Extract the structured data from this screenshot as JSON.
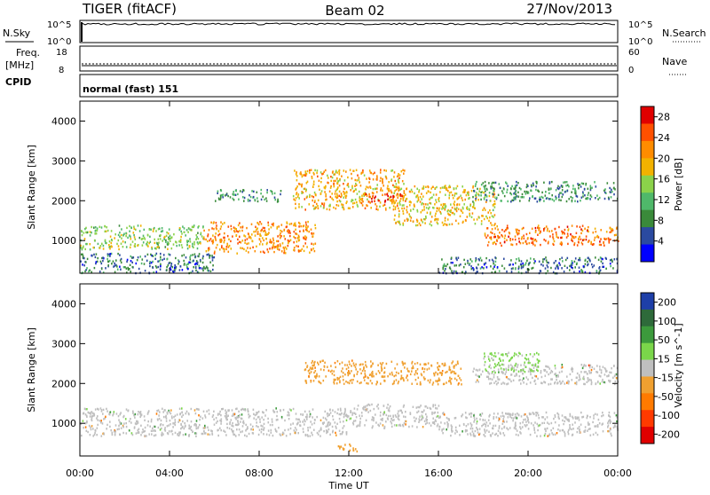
{
  "header": {
    "radar_title": "TIGER (fitACF)",
    "beam_title": "Beam 02",
    "date_title": "27/Nov/2013"
  },
  "status_panels": {
    "nsky_label": "N.Sky",
    "nsky_ticks": [
      "10^5",
      "10^0"
    ],
    "nsearch_label": "N.Search",
    "nsearch_ticks": [
      "10^5",
      "10^0"
    ],
    "freq_label": "Freq.",
    "freq_unit": "[MHz]",
    "freq_ticks": [
      "18",
      "8"
    ],
    "nave_label": "Nave",
    "nave_ticks": [
      "60",
      "0"
    ],
    "cpid_label": "CPID",
    "cpid_value": "normal (fast) 151"
  },
  "colors": {
    "power_scale": [
      "#0000ff",
      "#2b4aa0",
      "#3a8a3a",
      "#4fb86a",
      "#8bd24a",
      "#f2b200",
      "#ff8c00",
      "#ff5000",
      "#e00000"
    ],
    "velocity_scale": [
      "#1e3fa8",
      "#2e6a3a",
      "#3c9a3c",
      "#7ad64a",
      "#bfbfbf",
      "#f0a030",
      "#ff7a00",
      "#ff3a00",
      "#e00000"
    ]
  },
  "chart_data": [
    {
      "type": "heatmap",
      "title": "",
      "xlabel": "Time UT",
      "ylabel": "Slant Range [km]",
      "x_ticks": [
        "00:00",
        "04:00",
        "08:00",
        "12:00",
        "16:00",
        "20:00",
        "00:00"
      ],
      "y_ticks": [
        "1000",
        "2000",
        "3000",
        "4000"
      ],
      "ylim": [
        180,
        4500
      ],
      "colorbar_label": "Power [dB]",
      "colorbar_ticks": [
        "4",
        "8",
        "12",
        "16",
        "20",
        "24",
        "28"
      ],
      "colorbar_range": [
        0,
        30
      ],
      "scatter_regions": [
        {
          "t_start": 0.0,
          "t_end": 5.5,
          "r_start": 800,
          "r_end": 1400,
          "value": 14
        },
        {
          "t_start": 0.0,
          "t_end": 6.0,
          "r_start": 200,
          "r_end": 700,
          "value": 6
        },
        {
          "t_start": 5.5,
          "t_end": 10.5,
          "r_start": 700,
          "r_end": 1500,
          "value": 22
        },
        {
          "t_start": 6.0,
          "t_end": 9.0,
          "r_start": 2000,
          "r_end": 2300,
          "value": 8
        },
        {
          "t_start": 9.5,
          "t_end": 14.5,
          "r_start": 1800,
          "r_end": 2800,
          "value": 20
        },
        {
          "t_start": 12.5,
          "t_end": 14.5,
          "r_start": 2000,
          "r_end": 2200,
          "value": 28
        },
        {
          "t_start": 14.0,
          "t_end": 18.5,
          "r_start": 1400,
          "r_end": 2400,
          "value": 18
        },
        {
          "t_start": 18.0,
          "t_end": 24.0,
          "r_start": 900,
          "r_end": 1400,
          "value": 24
        },
        {
          "t_start": 17.5,
          "t_end": 24.0,
          "r_start": 2000,
          "r_end": 2500,
          "value": 8
        },
        {
          "t_start": 16.0,
          "t_end": 24.0,
          "r_start": 200,
          "r_end": 600,
          "value": 6
        }
      ]
    },
    {
      "type": "heatmap",
      "title": "",
      "xlabel": "Time UT",
      "ylabel": "Slant Range [km]",
      "x_ticks": [
        "00:00",
        "04:00",
        "08:00",
        "12:00",
        "16:00",
        "20:00",
        "00:00"
      ],
      "y_ticks": [
        "1000",
        "2000",
        "3000",
        "4000"
      ],
      "ylim": [
        180,
        4500
      ],
      "colorbar_label": "Velocity [m s^-1]",
      "colorbar_ticks": [
        "200",
        "100",
        "50",
        "15",
        "-15",
        "-50",
        "-100",
        "-200"
      ],
      "scatter_regions": [
        {
          "t_start": 0.0,
          "t_end": 12.0,
          "r_start": 700,
          "r_end": 1400,
          "value": 0
        },
        {
          "t_start": 12.0,
          "t_end": 16.0,
          "r_start": 900,
          "r_end": 1500,
          "value": 0
        },
        {
          "t_start": 16.0,
          "t_end": 24.0,
          "r_start": 700,
          "r_end": 1300,
          "value": 0
        },
        {
          "t_start": 17.5,
          "t_end": 24.0,
          "r_start": 2000,
          "r_end": 2500,
          "value": 0
        },
        {
          "t_start": 10.0,
          "t_end": 17.0,
          "r_start": 2000,
          "r_end": 2600,
          "value": -80
        },
        {
          "t_start": 18.0,
          "t_end": 20.5,
          "r_start": 2300,
          "r_end": 2800,
          "value": 40
        },
        {
          "t_start": 11.5,
          "t_end": 12.5,
          "r_start": 300,
          "r_end": 500,
          "value": -60
        }
      ]
    }
  ]
}
